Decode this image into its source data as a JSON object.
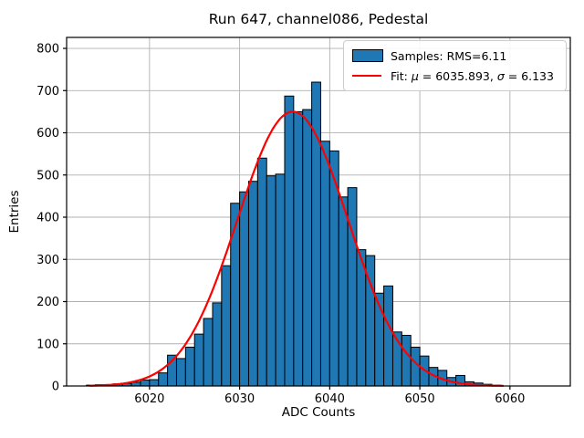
{
  "figure": {
    "title": "Run 647, channel086, Pedestal",
    "xlabel": "ADC Counts",
    "ylabel": "Entries"
  },
  "legend": {
    "samples_label": "Samples: RMS=6.11",
    "fit": {
      "p1": "Fit: ",
      "mu": "μ",
      "p2": " = 6035.893, ",
      "sigma": "σ",
      "p3": " = 6.133"
    },
    "swatch_color": "#1f77b4",
    "line_color": "#ff0000"
  },
  "chart_data": {
    "type": "bar",
    "subtype": "histogram",
    "title": "Run 647, channel086, Pedestal",
    "xlabel": "ADC Counts",
    "ylabel": "Entries",
    "bin_width": 1,
    "categories": [
      6013,
      6014,
      6015,
      6016,
      6017,
      6018,
      6019,
      6020,
      6021,
      6022,
      6023,
      6024,
      6025,
      6026,
      6027,
      6028,
      6029,
      6030,
      6031,
      6032,
      6033,
      6034,
      6035,
      6036,
      6037,
      6038,
      6039,
      6040,
      6041,
      6042,
      6043,
      6044,
      6045,
      6046,
      6047,
      6048,
      6049,
      6050,
      6051,
      6052,
      6053,
      6054,
      6055,
      6056,
      6057,
      6058
    ],
    "values": [
      2,
      3,
      3,
      5,
      6,
      9,
      14,
      15,
      31,
      73,
      65,
      92,
      123,
      160,
      197,
      285,
      433,
      460,
      485,
      540,
      498,
      502,
      687,
      650,
      655,
      720,
      580,
      557,
      448,
      470,
      323,
      309,
      220,
      237,
      128,
      120,
      92,
      71,
      44,
      37,
      20,
      25,
      10,
      7,
      4,
      2
    ],
    "fit_curve": {
      "type": "gaussian",
      "mu": 6035.893,
      "sigma": 6.133,
      "amplitude": 650,
      "x_range": [
        6013.3,
        6059.4
      ],
      "color": "#ff0000"
    },
    "samples_rms": 6.11,
    "xlim": [
      6010.8,
      6066.7
    ],
    "ylim": [
      0,
      826
    ],
    "x_ticks": [
      6020,
      6030,
      6040,
      6050,
      6060
    ],
    "y_ticks": [
      0,
      100,
      200,
      300,
      400,
      500,
      600,
      700,
      800
    ],
    "grid": true,
    "grid_color": "#b0b0b0",
    "bar_color": "#1f77b4",
    "bar_edge_color": "#000000",
    "legend_position": "upper right"
  }
}
